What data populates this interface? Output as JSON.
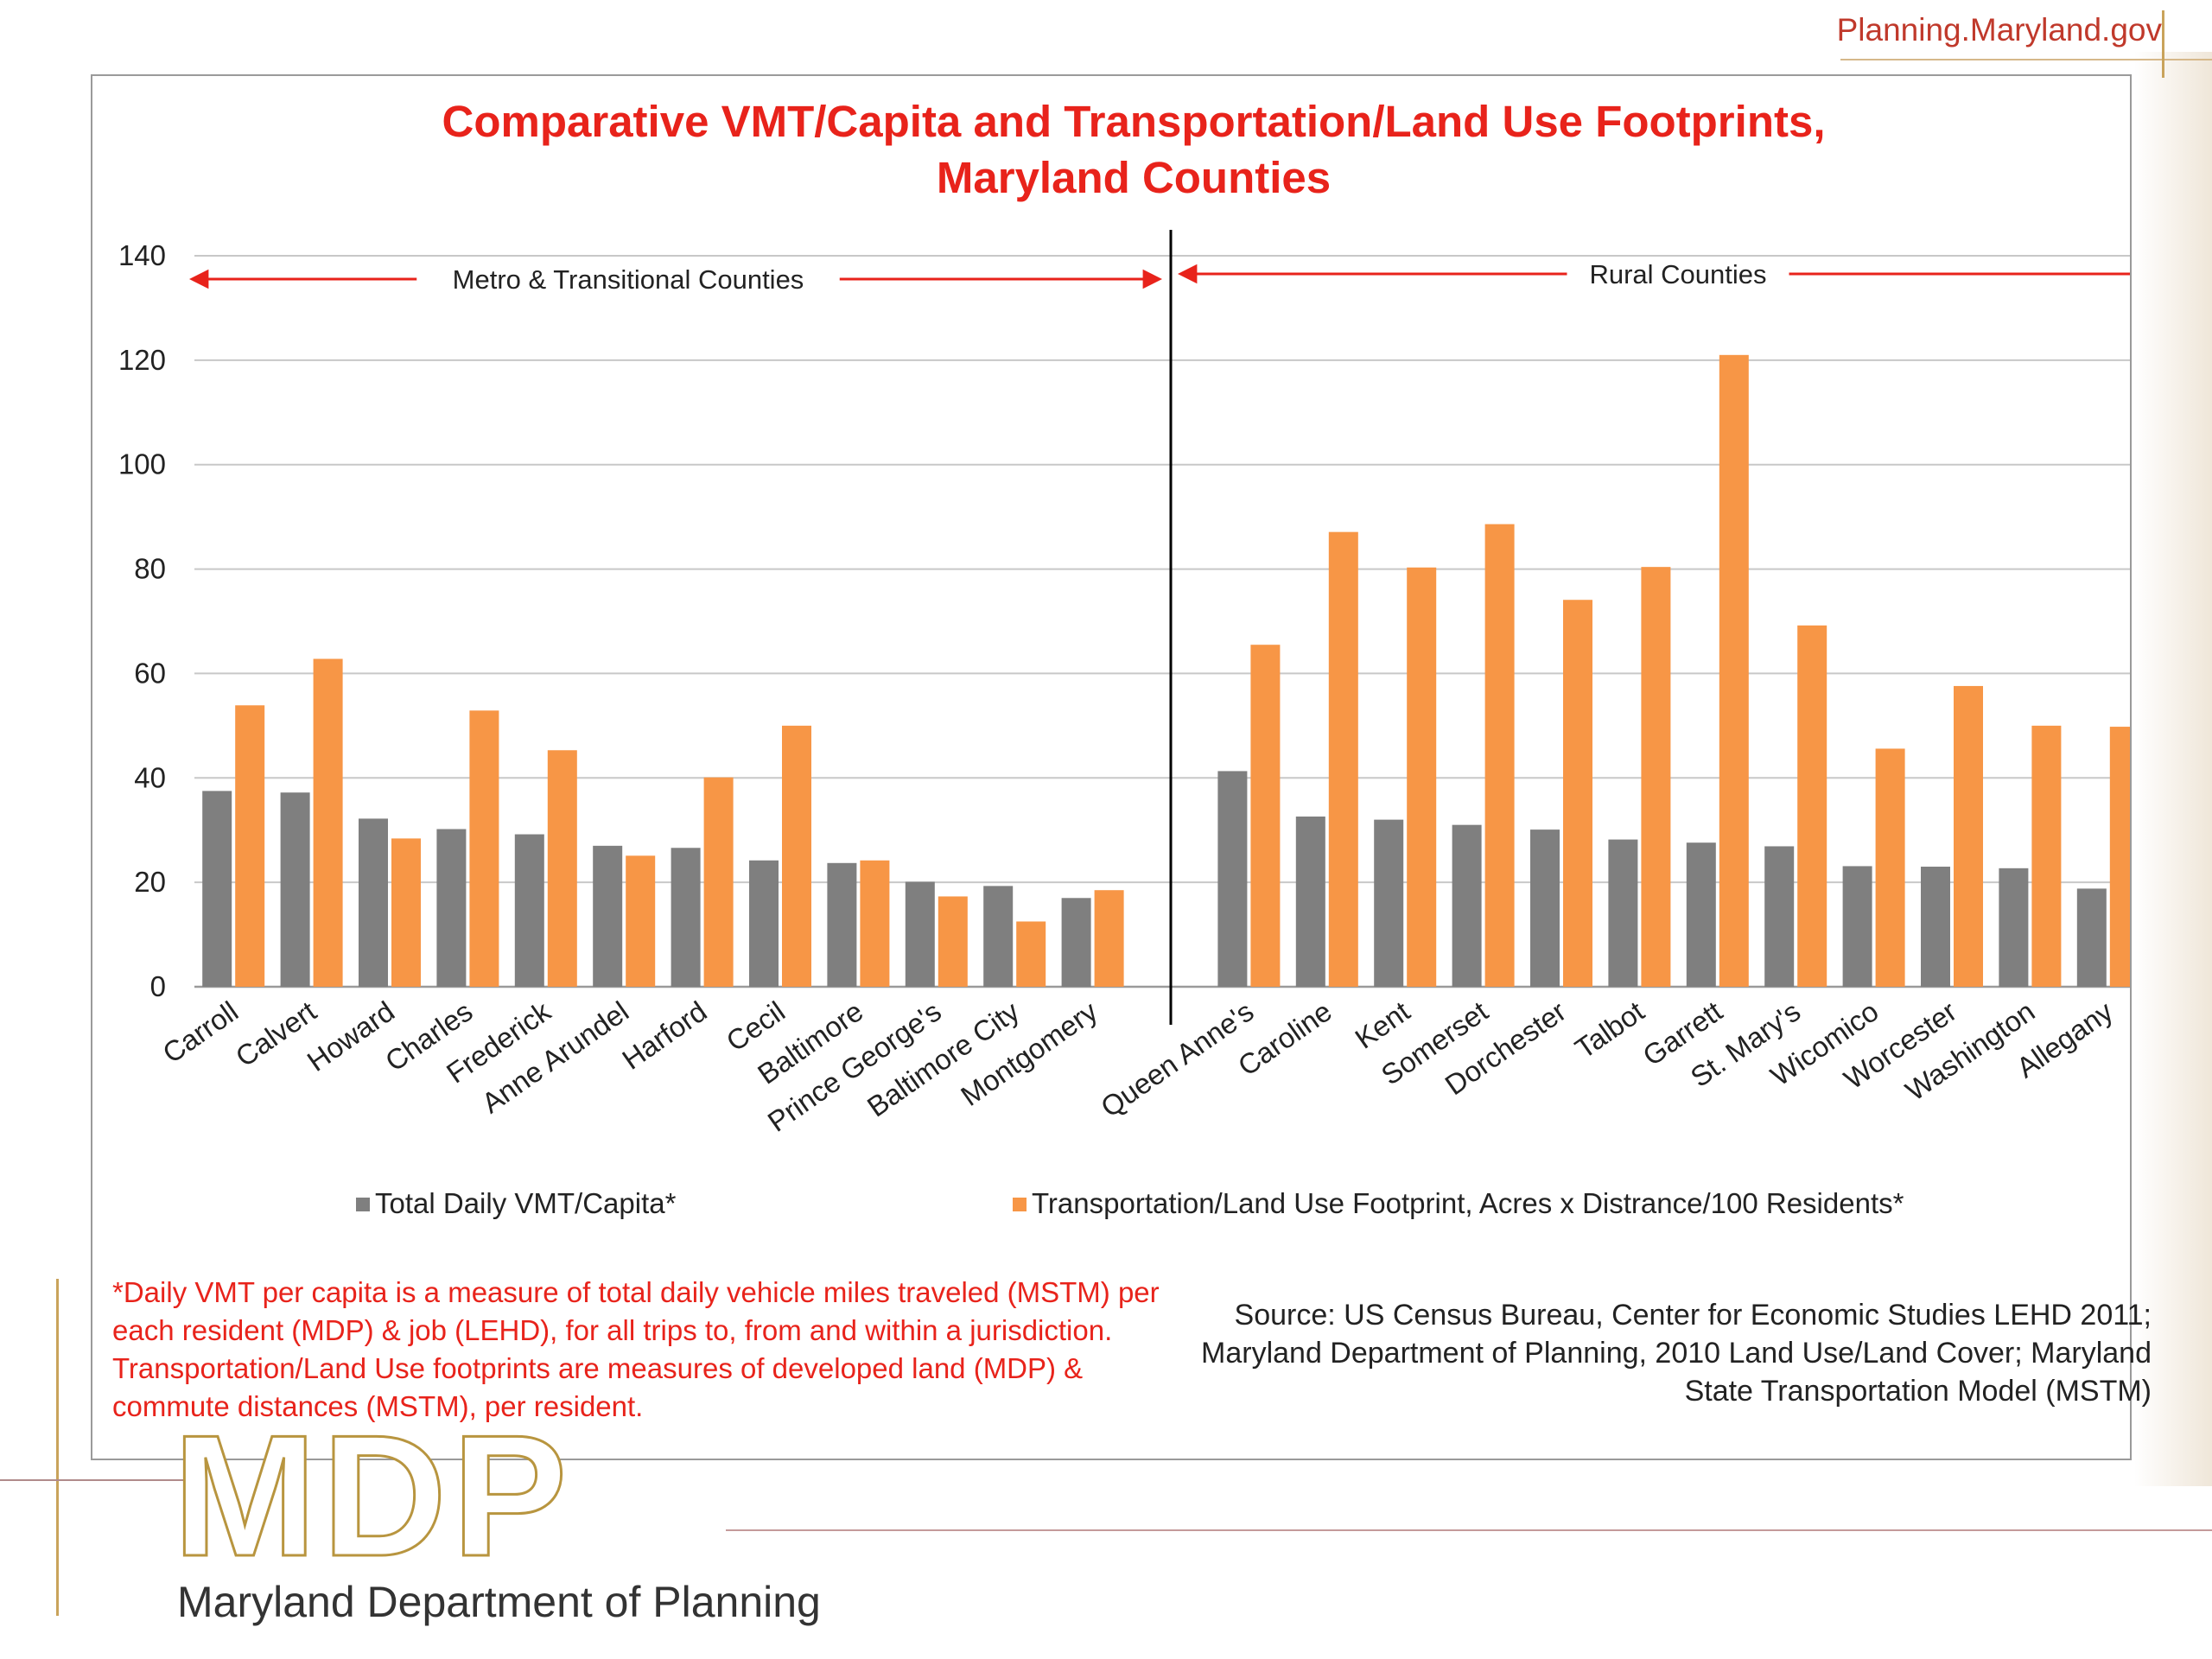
{
  "header": {
    "site_url": "Planning.Maryland.gov"
  },
  "chart_data": {
    "type": "bar",
    "title_line1": "Comparative VMT/Capita and Transportation/Land Use Footprints,",
    "title_line2": "Maryland Counties",
    "ylim": [
      0,
      140
    ],
    "yticks": [
      0,
      20,
      40,
      60,
      80,
      100,
      120,
      140
    ],
    "grid": true,
    "legend_position": "bottom",
    "groups": [
      {
        "label": "Metro & Transitional Counties",
        "start": 0,
        "end": 11
      },
      {
        "label": "Rural Counties",
        "start": 12,
        "end": 23
      }
    ],
    "categories": [
      "Carroll",
      "Calvert",
      "Howard",
      "Charles",
      "Frederick",
      "Anne Arundel",
      "Harford",
      "Cecil",
      "Baltimore",
      "Prince George's",
      "Baltimore City",
      "Montgomery",
      "Queen Anne's",
      "Caroline",
      "Kent",
      "Somerset",
      "Dorchester",
      "Talbot",
      "Garrett",
      "St. Mary's",
      "Wicomico",
      "Worcester",
      "Washington",
      "Allegany"
    ],
    "series": [
      {
        "name": "Total Daily VMT/Capita*",
        "color": "#7f7f7f",
        "values": [
          37.5,
          37.2,
          32.2,
          30.2,
          29.2,
          27,
          26.6,
          24.2,
          23.7,
          20.1,
          19.3,
          17,
          41.3,
          32.6,
          32,
          31,
          30.1,
          28.2,
          27.6,
          26.9,
          23.1,
          23,
          22.7,
          18.8
        ]
      },
      {
        "name": "Transportation/Land Use Footprint, Acres x Distrance/100 Residents*",
        "color": "#f79646",
        "values": [
          53.9,
          62.8,
          28.4,
          52.9,
          45.3,
          25.1,
          40.1,
          50,
          24.2,
          17.3,
          12.5,
          18.5,
          65.5,
          87.1,
          80.3,
          88.6,
          74.1,
          80.4,
          121,
          69.2,
          45.6,
          57.6,
          50,
          49.8
        ]
      }
    ]
  },
  "footnote": "*Daily VMT per capita is a measure of total daily vehicle miles traveled (MSTM) per each resident (MDP) & job (LEHD), for all trips to, from and within a jurisdiction. Transportation/Land Use footprints are measures of developed land (MDP) & commute distances (MSTM), per resident.",
  "source": "Source: US Census Bureau, Center for Economic Studies LEHD 2011; Maryland Department of Planning, 2010 Land Use/Land Cover; Maryland State Transportation Model (MSTM)",
  "logo": {
    "letters": "MDP",
    "org_name": "Maryland Department of Planning"
  },
  "colors": {
    "title_red": "#e8231b",
    "gold": "#c9a35b",
    "maroon": "#8b3a3a"
  }
}
